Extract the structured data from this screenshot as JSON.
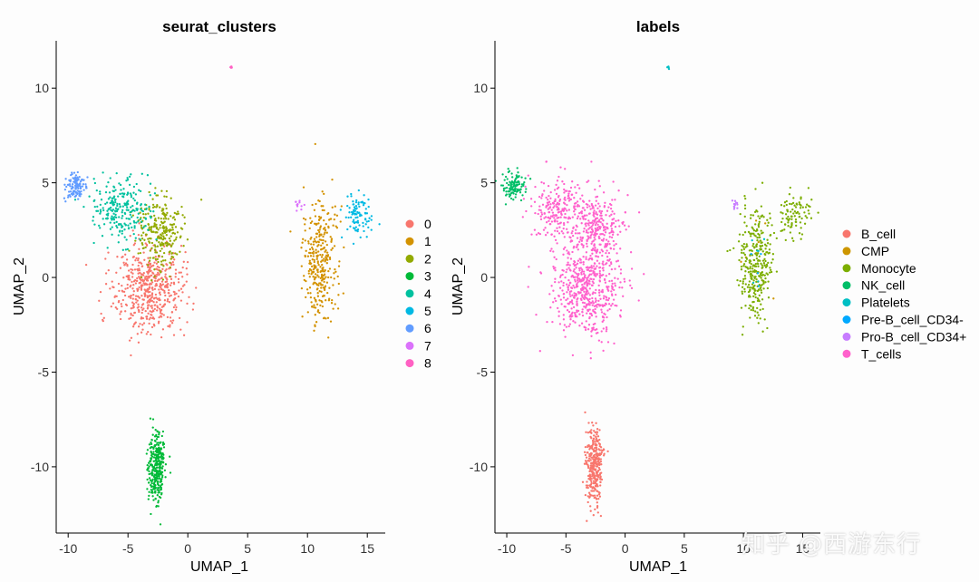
{
  "chart_data": [
    {
      "type": "scatter",
      "title": "seurat_clusters",
      "xlabel": "UMAP_1",
      "ylabel": "UMAP_2",
      "xlim": [
        -11,
        16.5
      ],
      "ylim": [
        -13.5,
        12.5
      ],
      "xticks": [
        -10,
        -5,
        0,
        5,
        10,
        15
      ],
      "yticks": [
        -10,
        -5,
        0,
        5,
        10
      ],
      "xtick_labels": [
        "-10",
        "-5",
        "0",
        "5",
        "10",
        "15"
      ],
      "ytick_labels": [
        "-10",
        "-5",
        "0",
        "5",
        "10"
      ],
      "legend_position": "right",
      "grid": false,
      "series": [
        {
          "name": "0",
          "color": "#F8766D",
          "clusters": [
            {
              "x": -3.3,
              "y": -0.6,
              "sx": 1.5,
              "sy": 1.2,
              "n": 520
            }
          ]
        },
        {
          "name": "1",
          "color": "#D39200",
          "clusters": [
            {
              "x": 11.0,
              "y": 0.8,
              "sx": 0.7,
              "sy": 1.5,
              "n": 320
            }
          ]
        },
        {
          "name": "2",
          "color": "#93AA00",
          "clusters": [
            {
              "x": -2.3,
              "y": 2.4,
              "sx": 1.0,
              "sy": 1.0,
              "n": 260
            }
          ]
        },
        {
          "name": "3",
          "color": "#00BA38",
          "clusters": [
            {
              "x": -2.6,
              "y": -10.0,
              "sx": 0.35,
              "sy": 1.0,
              "n": 320
            }
          ]
        },
        {
          "name": "4",
          "color": "#00C19F",
          "clusters": [
            {
              "x": -5.6,
              "y": 3.6,
              "sx": 1.2,
              "sy": 0.85,
              "n": 240
            }
          ]
        },
        {
          "name": "5",
          "color": "#00B9E3",
          "clusters": [
            {
              "x": 14.3,
              "y": 3.3,
              "sx": 0.6,
              "sy": 0.6,
              "n": 90
            }
          ]
        },
        {
          "name": "6",
          "color": "#619CFF",
          "clusters": [
            {
              "x": -9.3,
              "y": 4.8,
              "sx": 0.45,
              "sy": 0.35,
              "n": 110
            }
          ]
        },
        {
          "name": "7",
          "color": "#DB72FB",
          "clusters": [
            {
              "x": 9.3,
              "y": 3.9,
              "sx": 0.2,
              "sy": 0.15,
              "n": 12
            }
          ]
        },
        {
          "name": "8",
          "color": "#FF61C3",
          "clusters": [
            {
              "x": 3.6,
              "y": 11.1,
              "sx": 0.06,
              "sy": 0.05,
              "n": 5
            }
          ]
        }
      ]
    },
    {
      "type": "scatter",
      "title": "labels",
      "xlabel": "UMAP_1",
      "ylabel": "UMAP_2",
      "xlim": [
        -11,
        16.5
      ],
      "ylim": [
        -13.5,
        12.5
      ],
      "xticks": [
        -10,
        -5,
        0,
        5,
        10,
        15
      ],
      "yticks": [
        -10,
        -5,
        0,
        5,
        10
      ],
      "xtick_labels": [
        "-10",
        "-5",
        "0",
        "5",
        "10",
        "15"
      ],
      "ytick_labels": [
        "-10",
        "-5",
        "0",
        "5",
        "10"
      ],
      "legend_position": "right",
      "grid": false,
      "series": [
        {
          "name": "B_cell",
          "color": "#F8766D",
          "clusters": [
            {
              "x": -2.6,
              "y": -10.0,
              "sx": 0.35,
              "sy": 1.0,
              "n": 320
            }
          ]
        },
        {
          "name": "CMP",
          "color": "#CD9600",
          "clusters": [
            {
              "x": 11.0,
              "y": 1.0,
              "sx": 0.6,
              "sy": 1.0,
              "n": 8
            }
          ]
        },
        {
          "name": "Monocyte",
          "color": "#7CAE00",
          "clusters": [
            {
              "x": 11.0,
              "y": 0.8,
              "sx": 0.7,
              "sy": 1.5,
              "n": 320
            },
            {
              "x": 14.3,
              "y": 3.3,
              "sx": 0.6,
              "sy": 0.6,
              "n": 90
            }
          ]
        },
        {
          "name": "NK_cell",
          "color": "#00BE67",
          "clusters": [
            {
              "x": -9.3,
              "y": 4.8,
              "sx": 0.45,
              "sy": 0.35,
              "n": 110
            }
          ]
        },
        {
          "name": "Platelets",
          "color": "#00BFC4",
          "clusters": [
            {
              "x": 3.6,
              "y": 11.1,
              "sx": 0.06,
              "sy": 0.05,
              "n": 5
            },
            {
              "x": 11.2,
              "y": 1.2,
              "sx": 0.4,
              "sy": 0.8,
              "n": 6
            }
          ]
        },
        {
          "name": "Pre-B_cell_CD34-",
          "color": "#00A9FF",
          "clusters": [
            {
              "x": 11.3,
              "y": 0.5,
              "sx": 0.3,
              "sy": 0.6,
              "n": 4
            }
          ]
        },
        {
          "name": "Pro-B_cell_CD34+",
          "color": "#C77CFF",
          "clusters": [
            {
              "x": 9.3,
              "y": 3.9,
              "sx": 0.2,
              "sy": 0.15,
              "n": 12
            }
          ]
        },
        {
          "name": "T_cells",
          "color": "#FF61CC",
          "clusters": [
            {
              "x": -3.3,
              "y": -0.6,
              "sx": 1.5,
              "sy": 1.2,
              "n": 520
            },
            {
              "x": -2.3,
              "y": 2.4,
              "sx": 1.0,
              "sy": 1.0,
              "n": 260
            },
            {
              "x": -5.6,
              "y": 3.6,
              "sx": 1.2,
              "sy": 0.85,
              "n": 240
            }
          ]
        }
      ]
    }
  ],
  "watermark": "知乎 @西游东行"
}
